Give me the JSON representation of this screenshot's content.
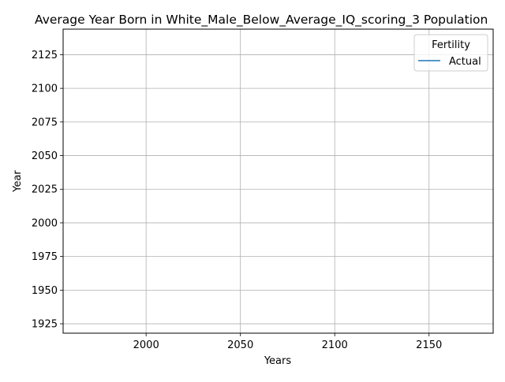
{
  "chart_data": {
    "type": "line",
    "title": "Average Year Born in White_Male_Below_Average_IQ_scoring_3 Population",
    "xlabel": "Years",
    "ylabel": "Year",
    "xlim": [
      1956,
      2184
    ],
    "ylim": [
      1918,
      2144
    ],
    "xticks": [
      2000,
      2050,
      2100,
      2150
    ],
    "yticks": [
      1925,
      1950,
      1975,
      2000,
      2025,
      2050,
      2075,
      2100,
      2125
    ],
    "grid": true,
    "legend": {
      "title": "Fertility",
      "placement": "top-right",
      "entries": [
        {
          "name": "Actual",
          "color": "#1f77b4"
        }
      ]
    },
    "series": [
      {
        "name": "Actual",
        "color": "#1f77b4",
        "x": [],
        "y": []
      }
    ]
  }
}
